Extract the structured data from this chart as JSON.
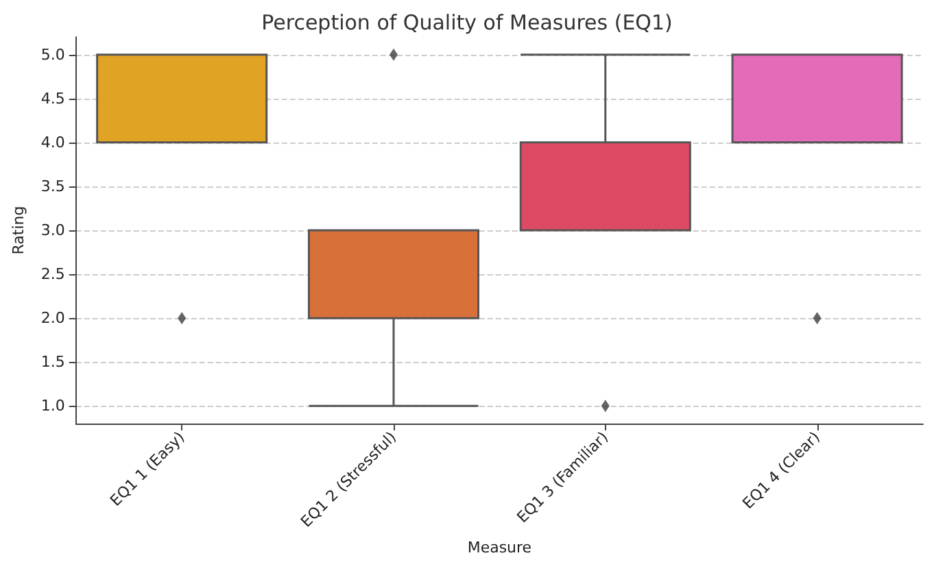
{
  "chart_data": {
    "type": "box",
    "title": "Perception of Quality of Measures (EQ1)",
    "xlabel": "Measure",
    "ylabel": "Rating",
    "categories": [
      "EQ1 1 (Easy)",
      "EQ1 2 (Stressful)",
      "EQ1 3 (Familiar)",
      "EQ1 4 (Clear)"
    ],
    "colors": [
      "#e0a323",
      "#d9703a",
      "#dc4a63",
      "#e46bb8"
    ],
    "boxes": [
      {
        "low": 4,
        "q1": 4,
        "median": 5,
        "q3": 5,
        "high": 5,
        "outliers": [
          2
        ]
      },
      {
        "low": 1,
        "q1": 2,
        "median": 3,
        "q3": 3,
        "high": 3,
        "outliers": [
          5
        ]
      },
      {
        "low": 3,
        "q1": 3,
        "median": 3,
        "q3": 4,
        "high": 5,
        "outliers": [
          1
        ]
      },
      {
        "low": 4,
        "q1": 4,
        "median": 5,
        "q3": 5,
        "high": 5,
        "outliers": [
          2
        ]
      }
    ],
    "ylim": [
      0.8,
      5.2
    ],
    "yticks": [
      {
        "value": 1,
        "label": "1.0"
      },
      {
        "value": 1.5,
        "label": "1.5"
      },
      {
        "value": 2,
        "label": "2.0"
      },
      {
        "value": 2.5,
        "label": "2.5"
      },
      {
        "value": 3,
        "label": "3.0"
      },
      {
        "value": 3.5,
        "label": "3.5"
      },
      {
        "value": 4,
        "label": "4.0"
      },
      {
        "value": 4.5,
        "label": "4.5"
      },
      {
        "value": 5,
        "label": "5.0"
      }
    ],
    "grid": "y",
    "marker": "diamond"
  }
}
